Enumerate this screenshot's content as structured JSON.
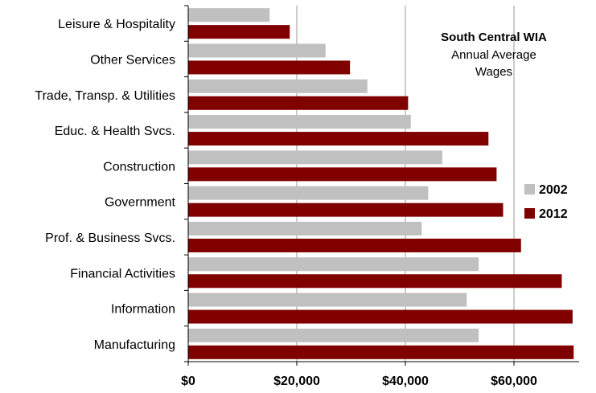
{
  "chart_data": {
    "type": "bar",
    "orientation": "horizontal",
    "title": "South Central WIA",
    "subtitle_lines": [
      "Annual Average",
      "Wages"
    ],
    "categories": [
      "Leisure & Hospitality",
      "Other Services",
      "Trade, Transp. & Utilities",
      "Educ. & Health Svcs.",
      "Construction",
      "Government",
      "Prof. & Business Svcs.",
      "Financial Activities",
      "Information",
      "Manufacturing"
    ],
    "series": [
      {
        "name": "2002",
        "color": "#c0c0c0",
        "values": [
          15000,
          25300,
          33000,
          41000,
          46800,
          44200,
          43000,
          53500,
          51300,
          53500
        ]
      },
      {
        "name": "2012",
        "color": "#800000",
        "values": [
          18700,
          29800,
          40500,
          55300,
          56800,
          58000,
          61300,
          68800,
          70800,
          71000
        ]
      }
    ],
    "xlim": [
      0,
      72000
    ],
    "xticks": [
      0,
      20000,
      40000,
      60000
    ],
    "xtick_labels": [
      "$0",
      "$20,000",
      "$40,000",
      "$60,000"
    ],
    "grid": "vertical",
    "legend_position": "right"
  }
}
